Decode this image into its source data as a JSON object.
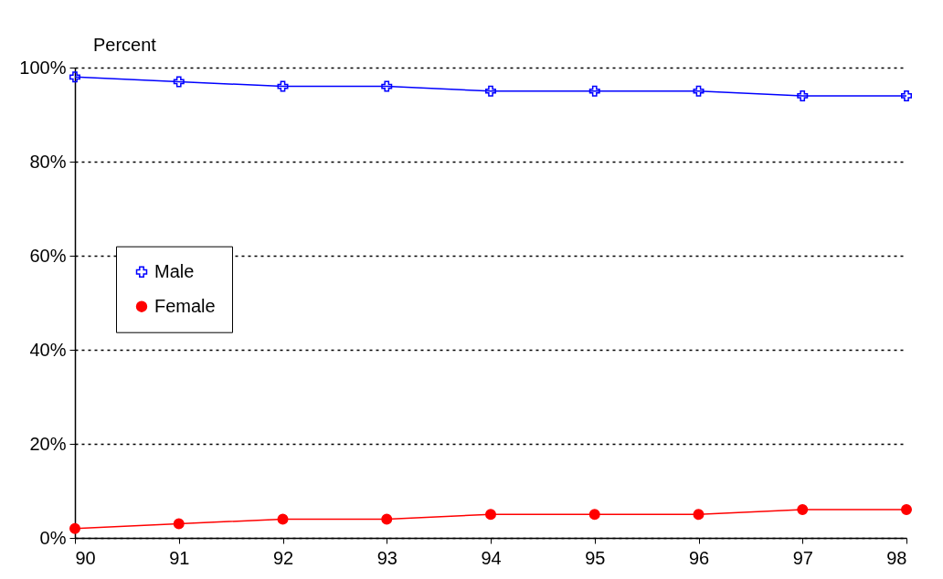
{
  "chart_data": {
    "type": "line",
    "ylabel": "Percent",
    "x": [
      90,
      91,
      92,
      93,
      94,
      95,
      96,
      97,
      98
    ],
    "series": [
      {
        "name": "Male",
        "color": "#0000ff",
        "marker": "cross",
        "values": [
          98,
          97,
          96,
          96,
          95,
          95,
          95,
          94,
          94
        ]
      },
      {
        "name": "Female",
        "color": "#ff0000",
        "marker": "circle",
        "values": [
          2,
          3,
          4,
          4,
          5,
          5,
          5,
          6,
          6
        ]
      }
    ],
    "xlim": [
      90,
      98
    ],
    "xticks": [
      90,
      91,
      92,
      93,
      94,
      95,
      96,
      97,
      98
    ],
    "ylim": [
      0,
      100
    ],
    "yticks": [
      {
        "value": 0,
        "label": "0%"
      },
      {
        "value": 20,
        "label": "20%"
      },
      {
        "value": 40,
        "label": "40%"
      },
      {
        "value": 60,
        "label": "60%"
      },
      {
        "value": 80,
        "label": "80%"
      },
      {
        "value": 100,
        "label": "100%"
      }
    ],
    "grid": "y",
    "legend": "left",
    "line_style": "solid"
  }
}
